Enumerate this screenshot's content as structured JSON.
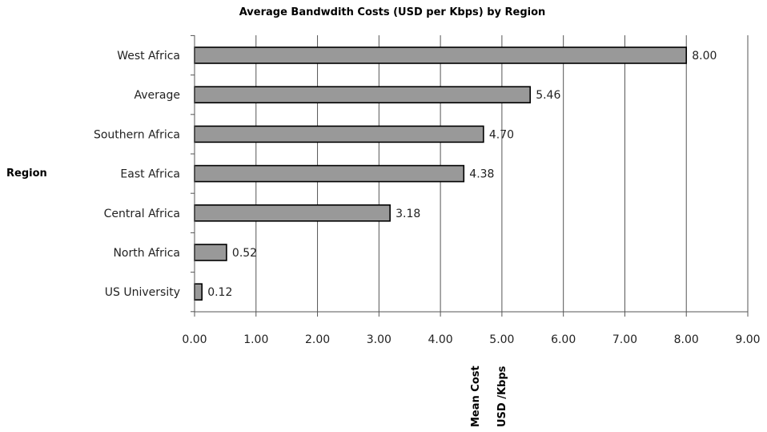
{
  "chart_data": {
    "type": "bar",
    "orientation": "horizontal",
    "title": "Average Bandwdith Costs (USD per Kbps) by Region",
    "ylabel": "Region",
    "xlabel_lines": [
      "Mean Cost",
      "USD /Kbps"
    ],
    "categories": [
      "West Africa",
      "Average",
      "Southern Africa",
      "East Africa",
      "Central Africa",
      "North Africa",
      "US University"
    ],
    "values": [
      8.0,
      5.46,
      4.7,
      4.38,
      3.18,
      0.52,
      0.12
    ],
    "data_labels": [
      "8.00",
      "5.46",
      "4.70",
      "4.38",
      "3.18",
      "0.52",
      "0.12"
    ],
    "xlim": [
      0,
      9
    ],
    "x_ticks": [
      "0.00",
      "1.00",
      "2.00",
      "3.00",
      "4.00",
      "5.00",
      "6.00",
      "7.00",
      "8.00",
      "9.00"
    ],
    "grid": true,
    "legend": "none",
    "bar_color": "#999999"
  }
}
